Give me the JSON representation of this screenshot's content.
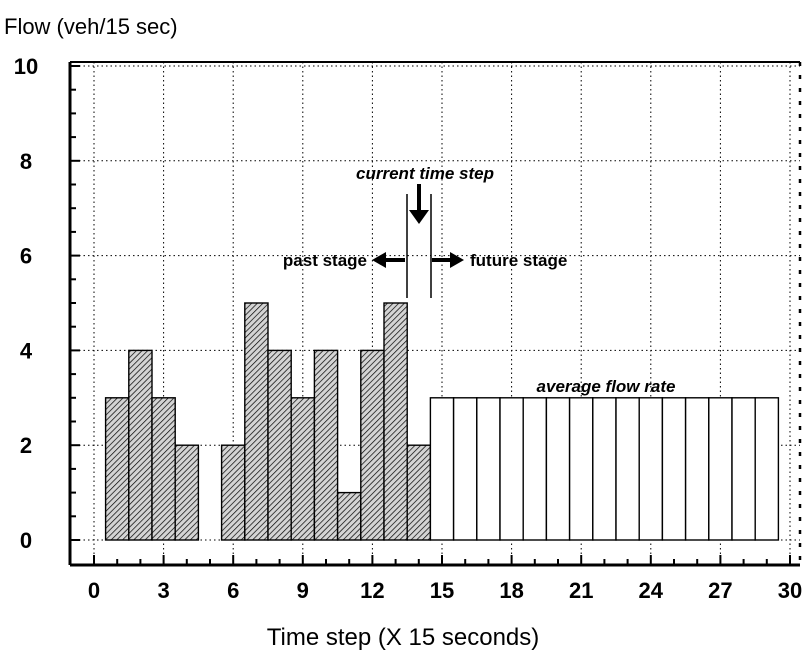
{
  "chart_data": {
    "type": "bar",
    "ylabel": "Flow (veh/15 sec)",
    "xlabel": "Time step (X 15 seconds)",
    "xlim": [
      -1,
      30
    ],
    "ylim": [
      -0.6,
      10.4
    ],
    "xticks": [
      0,
      3,
      6,
      9,
      12,
      15,
      18,
      21,
      24,
      27,
      30
    ],
    "yticks": [
      0,
      2,
      4,
      6,
      8,
      10
    ],
    "grid": true,
    "bar_width": 1,
    "series": [
      {
        "name": "past stage",
        "fill": "hatched",
        "x": [
          1,
          2,
          3,
          4,
          5,
          6,
          7,
          8,
          9,
          10,
          11,
          12,
          13,
          14
        ],
        "values": [
          3,
          4,
          3,
          2,
          0,
          2,
          5,
          4,
          3,
          4,
          1,
          4,
          5,
          2
        ]
      },
      {
        "name": "average flow rate",
        "fill": "white",
        "x": [
          15,
          16,
          17,
          18,
          19,
          20,
          21,
          22,
          23,
          24,
          25,
          26,
          27,
          28,
          29
        ],
        "values": [
          3,
          3,
          3,
          3,
          3,
          3,
          3,
          3,
          3,
          3,
          3,
          3,
          3,
          3,
          3
        ]
      }
    ],
    "annotations": {
      "current_time_step": "current time step",
      "past_stage": "past stage",
      "future_stage": "future stage",
      "average_flow_rate": "average flow rate"
    }
  },
  "colors": {
    "hatch_bar_fill": "#cfcfcf",
    "hatch_line": "#000000",
    "open_bar_fill": "#ffffff",
    "grid": "#000000",
    "axis": "#000000"
  }
}
